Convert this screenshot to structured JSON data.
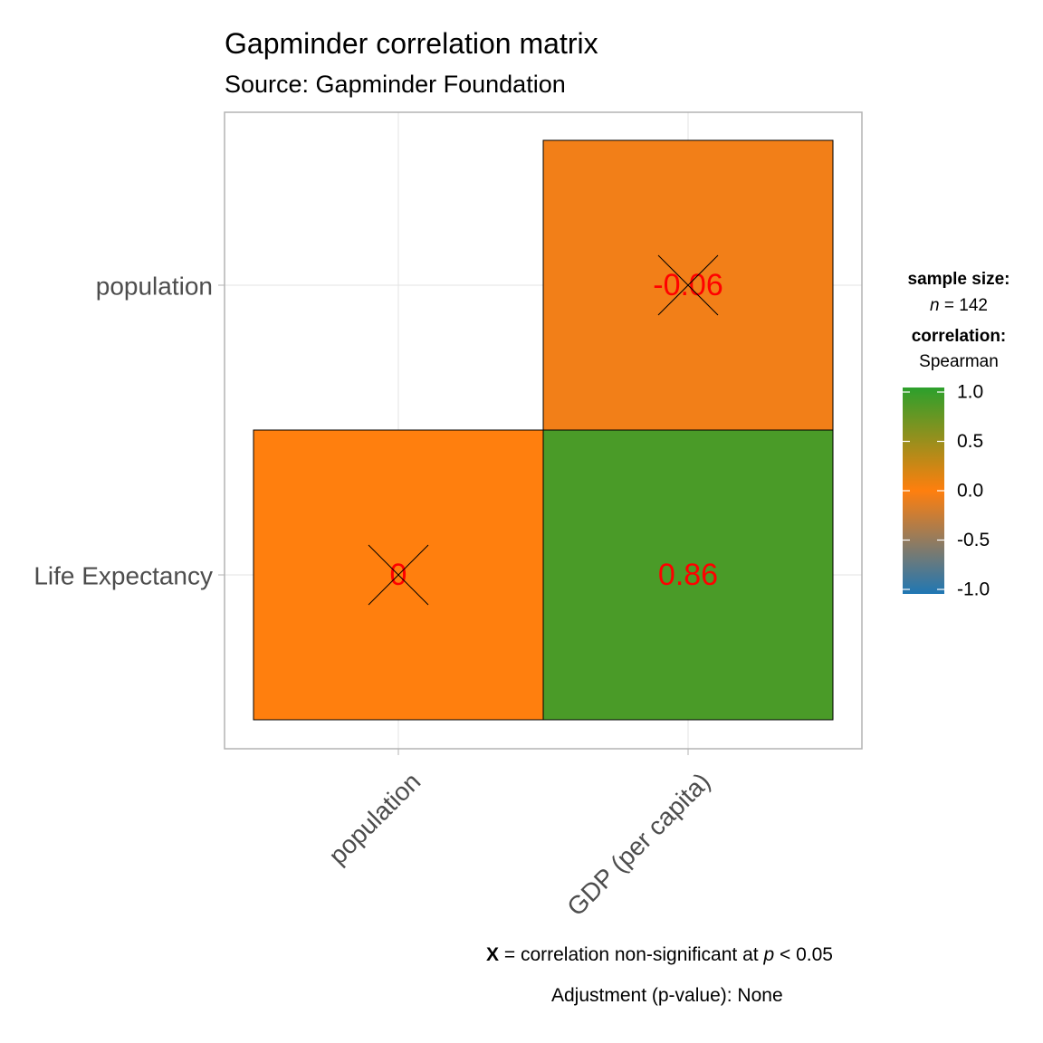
{
  "chart_data": {
    "type": "heatmap",
    "title": "Gapminder correlation matrix",
    "subtitle": "Source: Gapminder Foundation",
    "x_categories": [
      "population",
      "GDP (per capita)"
    ],
    "y_categories": [
      "Life Expectancy",
      "population"
    ],
    "cells": [
      {
        "x": "population",
        "y": "Life Expectancy",
        "value": 0,
        "label": "0",
        "significant": false
      },
      {
        "x": "GDP (per capita)",
        "y": "Life Expectancy",
        "value": 0.86,
        "label": "0.86",
        "significant": true
      },
      {
        "x": "GDP (per capita)",
        "y": "population",
        "value": -0.06,
        "label": "-0.06",
        "significant": false
      }
    ],
    "label_color": "#ff0000",
    "grid": true,
    "legend": {
      "position": "right",
      "sample_size_title": "sample size:",
      "sample_size_n": "n",
      "sample_size_value": "= 142",
      "correlation_title": "correlation:",
      "correlation_method": "Spearman",
      "ticks": [
        "1.0",
        "0.5",
        "0.0",
        "-0.5",
        "-1.0"
      ],
      "tick_values": [
        1.0,
        0.5,
        0.0,
        -0.5,
        -1.0
      ],
      "range": [
        -1,
        1
      ],
      "colors": {
        "low": "#1f77b4",
        "mid": "#ff7f0e",
        "high": "#2ca02c"
      }
    },
    "caption": {
      "x_symbol": "X",
      "text_before_p": "= correlation non-significant at",
      "p_symbol": "p",
      "text_after_p": "< 0.05",
      "adjustment": "Adjustment (p-value): None"
    }
  }
}
